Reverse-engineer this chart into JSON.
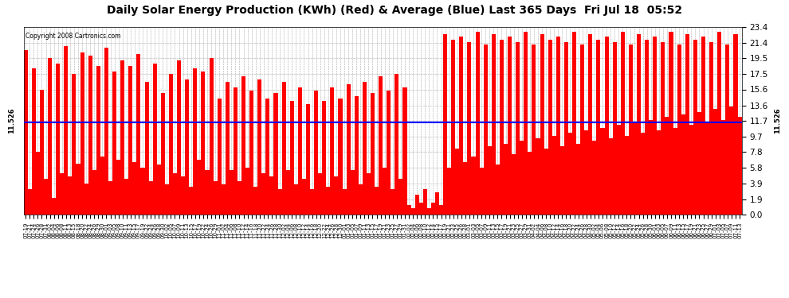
{
  "title": "Daily Solar Energy Production (KWh) (Red) & Average (Blue) Last 365 Days  Fri Jul 18  05:52",
  "copyright_text": "Copyright 2008 Cartronics.com",
  "yticks": [
    0.0,
    1.9,
    3.9,
    5.8,
    7.8,
    9.7,
    11.7,
    13.6,
    15.6,
    17.5,
    19.5,
    21.4,
    23.4
  ],
  "ymax": 23.4,
  "ymin": 0.0,
  "average_value": 11.526,
  "left_label": "11.526",
  "right_label": "11.526",
  "bar_color": "#FF0000",
  "avg_line_color": "#0000FF",
  "background_color": "#FFFFFF",
  "grid_color": "#AAAAAA",
  "title_fontsize": 10,
  "x_labels": [
    "07-19",
    "07-21",
    "07-24",
    "07-26",
    "07-28",
    "07-31",
    "08-02",
    "08-04",
    "08-06",
    "08-08",
    "08-11",
    "08-13",
    "08-15",
    "08-18",
    "08-20",
    "08-22",
    "08-24",
    "08-26",
    "08-29",
    "08-30",
    "09-01",
    "09-03",
    "09-05",
    "09-08",
    "09-10",
    "09-11",
    "09-13",
    "09-15",
    "09-17",
    "09-19",
    "09-22",
    "09-24",
    "09-26",
    "09-28",
    "09-30",
    "10-02",
    "10-05",
    "10-07",
    "10-09",
    "10-11",
    "10-13",
    "10-15",
    "10-17",
    "10-19",
    "10-22",
    "10-24",
    "10-26",
    "10-29",
    "11-01",
    "11-02",
    "11-04",
    "11-06",
    "11-08",
    "11-10",
    "11-12",
    "11-14",
    "11-16",
    "11-18",
    "11-20",
    "11-22",
    "11-24",
    "11-26",
    "11-28",
    "11-30",
    "12-02",
    "12-04",
    "12-06",
    "12-08",
    "12-10",
    "12-12",
    "12-14",
    "12-16",
    "12-18",
    "12-20",
    "12-22",
    "12-24",
    "12-26",
    "12-28",
    "12-30",
    "01-01",
    "01-03",
    "01-05",
    "01-07",
    "01-09",
    "01-11",
    "01-13",
    "01-15",
    "01-17",
    "01-19",
    "01-21",
    "01-23",
    "01-25",
    "01-27",
    "01-29",
    "01-31",
    "02-02",
    "02-04",
    "02-06",
    "02-08",
    "02-10",
    "02-12",
    "02-14",
    "02-15",
    "02-17",
    "02-19",
    "02-21",
    "02-23",
    "02-25",
    "02-26",
    "02-28",
    "03-01",
    "03-03",
    "03-05",
    "03-07",
    "03-09",
    "03-11",
    "03-13",
    "03-15",
    "03-17",
    "03-19",
    "03-21",
    "03-23",
    "03-25",
    "03-27",
    "03-29",
    "03-31",
    "04-02",
    "04-04",
    "04-06",
    "04-08",
    "04-10",
    "04-12",
    "04-14",
    "04-16",
    "04-18",
    "04-20",
    "04-22",
    "04-24",
    "04-26",
    "04-28",
    "04-30",
    "05-02",
    "05-04",
    "05-06",
    "05-08",
    "05-10",
    "05-12",
    "05-14",
    "05-16",
    "05-18",
    "05-20",
    "05-22",
    "05-24",
    "05-26",
    "05-28",
    "05-30",
    "06-01",
    "06-03",
    "06-05",
    "06-07",
    "06-09",
    "06-11",
    "06-13",
    "06-15",
    "06-17",
    "06-19",
    "06-21",
    "06-23",
    "06-25",
    "06-27",
    "06-29",
    "07-01",
    "07-03",
    "07-05",
    "07-07",
    "07-09",
    "07-11",
    "07-13"
  ],
  "bar_values": [
    20.5,
    3.2,
    18.2,
    7.8,
    15.6,
    4.5,
    19.5,
    2.1,
    18.8,
    5.2,
    21.0,
    4.8,
    17.5,
    6.3,
    20.2,
    3.9,
    19.8,
    5.5,
    18.5,
    7.2,
    20.8,
    4.2,
    17.8,
    6.8,
    19.2,
    4.5,
    18.5,
    6.5,
    20.0,
    5.8,
    16.5,
    4.2,
    18.8,
    6.2,
    15.2,
    3.8,
    17.5,
    5.2,
    19.2,
    4.8,
    16.8,
    3.5,
    18.2,
    6.8,
    17.8,
    5.5,
    19.5,
    4.2,
    14.5,
    3.8,
    16.5,
    5.5,
    15.8,
    4.2,
    17.2,
    5.8,
    15.5,
    3.5,
    16.8,
    5.2,
    14.5,
    4.8,
    15.2,
    3.2,
    16.5,
    5.5,
    14.2,
    3.8,
    15.8,
    4.5,
    13.8,
    3.2,
    15.5,
    5.2,
    14.2,
    3.5,
    15.8,
    4.8,
    14.5,
    3.2,
    16.2,
    5.5,
    14.8,
    3.8,
    16.5,
    5.2,
    15.2,
    3.5,
    17.2,
    5.8,
    15.5,
    3.2,
    17.5,
    4.5,
    15.8,
    1.2,
    0.8,
    2.5,
    1.5,
    3.2,
    0.8,
    1.5,
    2.8,
    1.2,
    22.5,
    5.8,
    21.8,
    8.2,
    22.2,
    6.5,
    21.5,
    7.2,
    22.8,
    5.8,
    21.2,
    8.5,
    22.5,
    6.2,
    21.8,
    8.8,
    22.2,
    7.5,
    21.5,
    9.2,
    22.8,
    7.8,
    21.2,
    9.5,
    22.5,
    8.2,
    21.8,
    9.8,
    22.2,
    8.5,
    21.5,
    10.2,
    22.8,
    8.8,
    21.2,
    10.5,
    22.5,
    9.2,
    21.8,
    10.8,
    22.2,
    9.5,
    21.5,
    11.2,
    22.8,
    9.8,
    21.2,
    11.5,
    22.5,
    10.2,
    21.8,
    11.8,
    22.2,
    10.5,
    21.5,
    12.2,
    22.8,
    10.8,
    21.2,
    12.5,
    22.5,
    11.2,
    21.8,
    12.8,
    22.2,
    11.5,
    21.5,
    13.2,
    22.8,
    11.8,
    21.2,
    13.5,
    22.5,
    12.2
  ]
}
